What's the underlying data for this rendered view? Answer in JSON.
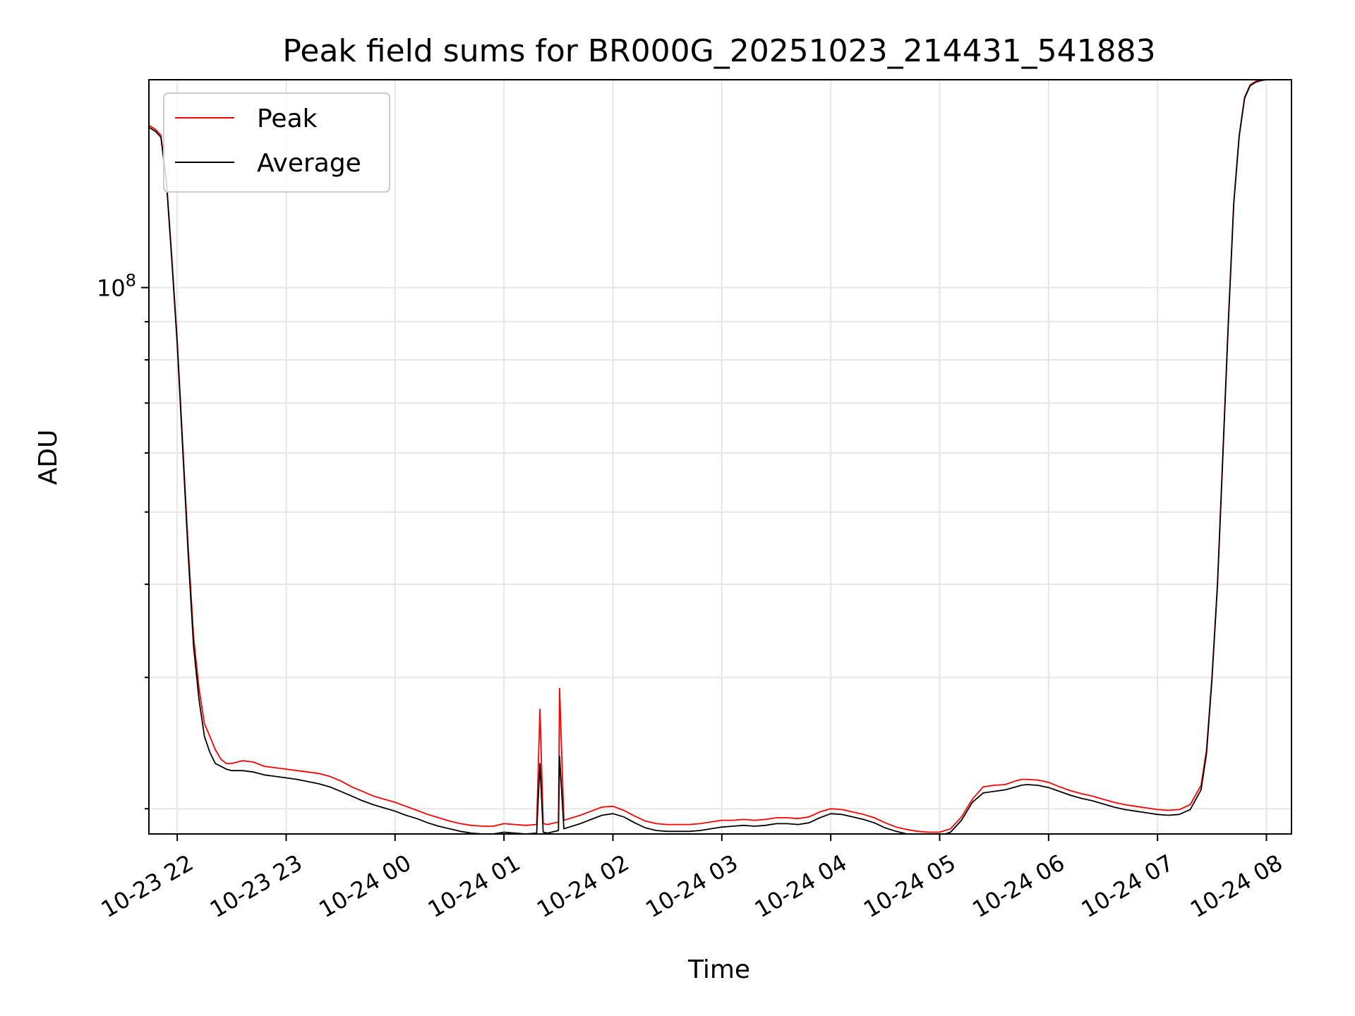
{
  "chart_data": {
    "type": "line",
    "title": "Peak field sums for BR000G_20251023_214431_541883",
    "xlabel": "Time",
    "ylabel": "ADU",
    "yscale": "log",
    "ylim": [
      18500000,
      190000000
    ],
    "y_major_tick": {
      "value": 100000000,
      "base": "10",
      "exp": "8"
    },
    "y_minor_ticks": [
      20000000,
      30000000,
      40000000,
      50000000,
      60000000,
      70000000,
      80000000,
      90000000
    ],
    "x_unit": "hours since 2025-10-23 00:00",
    "xlim": [
      21.74,
      32.23
    ],
    "x_ticks": [
      {
        "x": 22,
        "label": "10-23 22"
      },
      {
        "x": 23,
        "label": "10-23 23"
      },
      {
        "x": 24,
        "label": "10-24 00"
      },
      {
        "x": 25,
        "label": "10-24 01"
      },
      {
        "x": 26,
        "label": "10-24 02"
      },
      {
        "x": 27,
        "label": "10-24 03"
      },
      {
        "x": 28,
        "label": "10-24 04"
      },
      {
        "x": 29,
        "label": "10-24 05"
      },
      {
        "x": 30,
        "label": "10-24 06"
      },
      {
        "x": 31,
        "label": "10-24 07"
      },
      {
        "x": 32,
        "label": "10-24 08"
      }
    ],
    "grid": true,
    "legend_position": "top-left",
    "series": [
      {
        "name": "Peak",
        "color": "#ff0000",
        "x": [
          21.74,
          21.8,
          21.85,
          21.9,
          21.95,
          22.0,
          22.05,
          22.1,
          22.15,
          22.2,
          22.25,
          22.3,
          22.35,
          22.4,
          22.45,
          22.5,
          22.6,
          22.7,
          22.8,
          22.9,
          23.0,
          23.1,
          23.2,
          23.3,
          23.4,
          23.5,
          23.6,
          23.7,
          23.8,
          23.9,
          24.0,
          24.1,
          24.2,
          24.3,
          24.4,
          24.5,
          24.6,
          24.7,
          24.8,
          24.9,
          25.0,
          25.1,
          25.2,
          25.3,
          25.33,
          25.36,
          25.4,
          25.5,
          25.51,
          25.55,
          25.6,
          25.7,
          25.8,
          25.9,
          26.0,
          26.1,
          26.2,
          26.3,
          26.4,
          26.5,
          26.6,
          26.7,
          26.8,
          26.9,
          27.0,
          27.1,
          27.2,
          27.3,
          27.4,
          27.5,
          27.6,
          27.7,
          27.8,
          27.9,
          28.0,
          28.1,
          28.2,
          28.3,
          28.4,
          28.5,
          28.6,
          28.7,
          28.8,
          28.9,
          29.0,
          29.1,
          29.2,
          29.3,
          29.4,
          29.5,
          29.6,
          29.7,
          29.75,
          29.8,
          29.9,
          30.0,
          30.1,
          30.2,
          30.3,
          30.4,
          30.5,
          30.6,
          30.7,
          30.8,
          30.9,
          31.0,
          31.1,
          31.2,
          31.3,
          31.4,
          31.45,
          31.5,
          31.55,
          31.6,
          31.65,
          31.7,
          31.75,
          31.8,
          31.85,
          31.9,
          31.95,
          32.0
        ],
        "y": [
          165000000,
          163000000,
          160000000,
          140000000,
          110000000,
          85000000,
          62000000,
          45000000,
          34000000,
          29000000,
          26000000,
          25000000,
          24000000,
          23300000,
          23000000,
          23000000,
          23200000,
          23100000,
          22800000,
          22700000,
          22600000,
          22500000,
          22400000,
          22300000,
          22100000,
          21800000,
          21400000,
          21100000,
          20800000,
          20600000,
          20400000,
          20150000,
          19900000,
          19650000,
          19450000,
          19250000,
          19100000,
          19000000,
          18950000,
          18950000,
          19100000,
          19050000,
          19000000,
          19050000,
          27200000,
          19100000,
          19050000,
          19200000,
          29000000,
          19300000,
          19400000,
          19600000,
          19850000,
          20100000,
          20150000,
          19900000,
          19550000,
          19250000,
          19100000,
          19050000,
          19050000,
          19050000,
          19100000,
          19200000,
          19300000,
          19300000,
          19350000,
          19300000,
          19350000,
          19450000,
          19450000,
          19400000,
          19500000,
          19800000,
          20000000,
          19950000,
          19800000,
          19650000,
          19450000,
          19150000,
          18900000,
          18750000,
          18650000,
          18600000,
          18600000,
          18800000,
          19500000,
          20600000,
          21400000,
          21500000,
          21550000,
          21800000,
          21900000,
          21900000,
          21850000,
          21700000,
          21400000,
          21150000,
          20950000,
          20800000,
          20600000,
          20400000,
          20250000,
          20150000,
          20050000,
          19950000,
          19900000,
          19950000,
          20250000,
          21500000,
          24000000,
          30000000,
          40000000,
          60000000,
          90000000,
          130000000,
          160000000,
          180000000,
          187000000,
          189000000,
          190000000,
          190000000
        ]
      },
      {
        "name": "Average",
        "color": "#000000",
        "x": [
          21.74,
          21.8,
          21.85,
          21.9,
          21.95,
          22.0,
          22.05,
          22.1,
          22.15,
          22.2,
          22.25,
          22.3,
          22.35,
          22.4,
          22.45,
          22.5,
          22.6,
          22.7,
          22.8,
          22.9,
          23.0,
          23.1,
          23.2,
          23.3,
          23.4,
          23.5,
          23.6,
          23.7,
          23.8,
          23.9,
          24.0,
          24.1,
          24.2,
          24.3,
          24.4,
          24.5,
          24.6,
          24.7,
          24.8,
          24.9,
          25.0,
          25.1,
          25.2,
          25.3,
          25.33,
          25.36,
          25.4,
          25.5,
          25.51,
          25.55,
          25.6,
          25.7,
          25.8,
          25.9,
          26.0,
          26.1,
          26.2,
          26.3,
          26.4,
          26.5,
          26.6,
          26.7,
          26.8,
          26.9,
          27.0,
          27.1,
          27.2,
          27.3,
          27.4,
          27.5,
          27.6,
          27.7,
          27.8,
          27.9,
          28.0,
          28.1,
          28.2,
          28.3,
          28.4,
          28.5,
          28.6,
          28.7,
          28.8,
          28.9,
          29.0,
          29.1,
          29.2,
          29.3,
          29.4,
          29.5,
          29.6,
          29.7,
          29.75,
          29.8,
          29.9,
          30.0,
          30.1,
          30.2,
          30.3,
          30.4,
          30.5,
          30.6,
          30.7,
          30.8,
          30.9,
          31.0,
          31.1,
          31.2,
          31.3,
          31.4,
          31.45,
          31.5,
          31.55,
          31.6,
          31.65,
          31.7,
          31.75,
          31.8,
          31.85,
          31.9,
          31.95,
          32.0
        ],
        "y": [
          164000000,
          162000000,
          159000000,
          139000000,
          109000000,
          84000000,
          61000000,
          44000000,
          33000000,
          28000000,
          25000000,
          23800000,
          23000000,
          22800000,
          22600000,
          22500000,
          22500000,
          22400000,
          22200000,
          22100000,
          22000000,
          21900000,
          21750000,
          21600000,
          21400000,
          21100000,
          20800000,
          20500000,
          20250000,
          20050000,
          19850000,
          19600000,
          19400000,
          19150000,
          18950000,
          18800000,
          18650000,
          18550000,
          18500000,
          18500000,
          18600000,
          18550000,
          18500000,
          18550000,
          23000000,
          18600000,
          18550000,
          18700000,
          23500000,
          18800000,
          18900000,
          19100000,
          19350000,
          19600000,
          19700000,
          19500000,
          19150000,
          18850000,
          18700000,
          18650000,
          18650000,
          18650000,
          18700000,
          18800000,
          18900000,
          18950000,
          19000000,
          18950000,
          19000000,
          19100000,
          19100000,
          19050000,
          19150000,
          19450000,
          19700000,
          19650000,
          19500000,
          19350000,
          19150000,
          18850000,
          18650000,
          18500000,
          18450000,
          18400000,
          18400000,
          18600000,
          19300000,
          20400000,
          21000000,
          21100000,
          21200000,
          21400000,
          21500000,
          21550000,
          21500000,
          21350000,
          21100000,
          20850000,
          20650000,
          20500000,
          20300000,
          20100000,
          19950000,
          19850000,
          19750000,
          19650000,
          19600000,
          19650000,
          19950000,
          21200000,
          23700000,
          29800000,
          39800000,
          59500000,
          89500000,
          129500000,
          159500000,
          179500000,
          186500000,
          188500000,
          189500000,
          190000000
        ]
      }
    ]
  }
}
